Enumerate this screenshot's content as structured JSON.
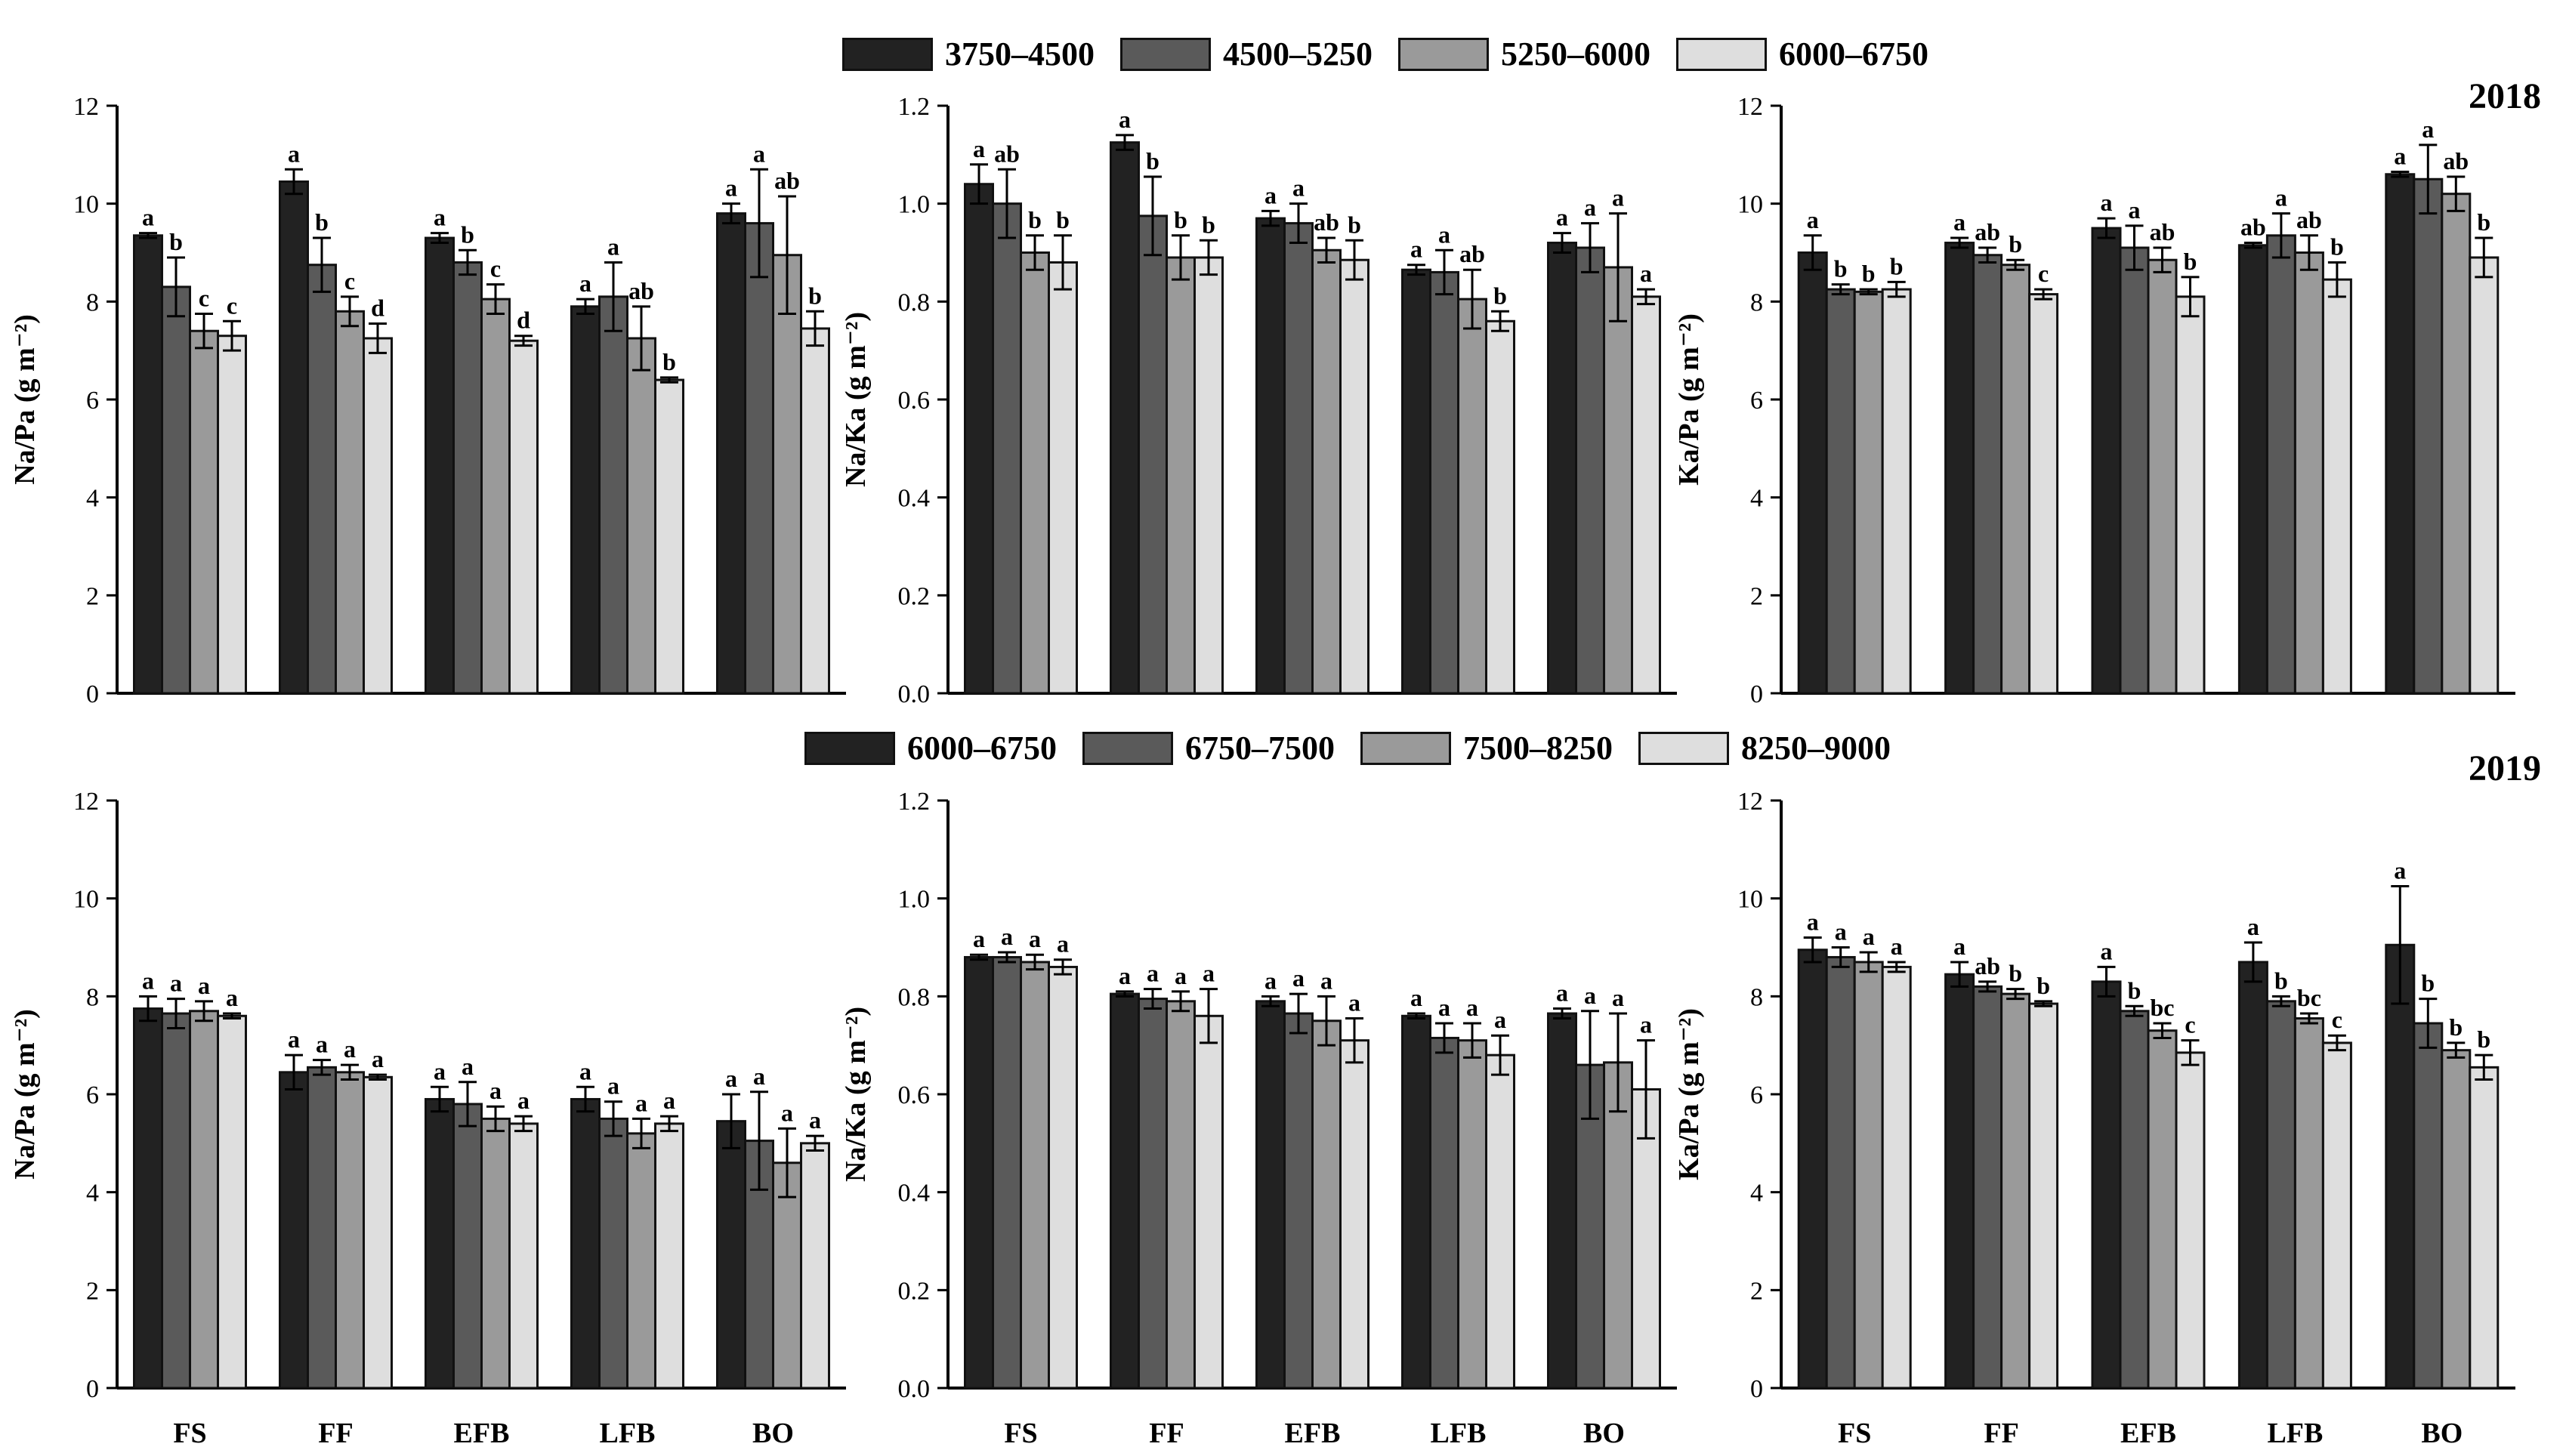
{
  "colors": [
    "#222222",
    "#5a5a5a",
    "#9a9a9a",
    "#dedede"
  ],
  "legend_2018": [
    "3750–4500",
    "4500–5250",
    "5250–6000",
    "6000–6750"
  ],
  "legend_2019": [
    "6000–6750",
    "6750–7500",
    "7500–8250",
    "8250–9000"
  ],
  "year_2018": "2018",
  "year_2019": "2019",
  "chart_data": [
    {
      "id": "na_pa_2018",
      "type": "bar",
      "year": "2018",
      "ylabel": "Na/Pa (g m⁻²)",
      "ylim": [
        0,
        12
      ],
      "yticks": [
        "0",
        "2",
        "4",
        "6",
        "8",
        "10",
        "12"
      ],
      "tick_values": [
        0,
        2,
        4,
        6,
        8,
        10,
        12
      ],
      "categories": [
        "FS",
        "FF",
        "EFB",
        "LFB",
        "BO"
      ],
      "show_xticklabels": false,
      "series": [
        {
          "name": "3750–4500",
          "values": [
            9.35,
            10.45,
            9.3,
            7.9,
            9.8
          ],
          "errors": [
            0.05,
            0.25,
            0.1,
            0.15,
            0.2
          ],
          "letters": [
            "a",
            "a",
            "a",
            "a",
            "a"
          ]
        },
        {
          "name": "4500–5250",
          "values": [
            8.3,
            8.75,
            8.8,
            8.1,
            9.6
          ],
          "errors": [
            0.6,
            0.55,
            0.25,
            0.7,
            1.1
          ],
          "letters": [
            "b",
            "b",
            "b",
            "a",
            "a"
          ]
        },
        {
          "name": "5250–6000",
          "values": [
            7.4,
            7.8,
            8.05,
            7.25,
            8.95
          ],
          "errors": [
            0.35,
            0.3,
            0.3,
            0.65,
            1.2
          ],
          "letters": [
            "c",
            "c",
            "c",
            "ab",
            "ab"
          ]
        },
        {
          "name": "6000–6750",
          "values": [
            7.3,
            7.25,
            7.2,
            6.4,
            7.45
          ],
          "errors": [
            0.3,
            0.3,
            0.1,
            0.05,
            0.35
          ],
          "letters": [
            "c",
            "d",
            "d",
            "b",
            "b"
          ]
        }
      ]
    },
    {
      "id": "na_ka_2018",
      "type": "bar",
      "year": "2018",
      "ylabel": "Na/Ka (g m⁻²)",
      "ylim": [
        0,
        1.2
      ],
      "yticks": [
        "0.0",
        "0.2",
        "0.4",
        "0.6",
        "0.8",
        "1.0",
        "1.2"
      ],
      "tick_values": [
        0,
        0.2,
        0.4,
        0.6,
        0.8,
        1.0,
        1.2
      ],
      "categories": [
        "FS",
        "FF",
        "EFB",
        "LFB",
        "BO"
      ],
      "show_xticklabels": false,
      "series": [
        {
          "name": "3750–4500",
          "values": [
            1.04,
            1.125,
            0.97,
            0.865,
            0.92
          ],
          "errors": [
            0.04,
            0.015,
            0.015,
            0.01,
            0.02
          ],
          "letters": [
            "a",
            "a",
            "a",
            "a",
            "a"
          ]
        },
        {
          "name": "4500–5250",
          "values": [
            1.0,
            0.975,
            0.96,
            0.86,
            0.91
          ],
          "errors": [
            0.07,
            0.08,
            0.04,
            0.045,
            0.05
          ],
          "letters": [
            "ab",
            "b",
            "a",
            "a",
            "a"
          ]
        },
        {
          "name": "5250–6000",
          "values": [
            0.9,
            0.89,
            0.905,
            0.805,
            0.87
          ],
          "errors": [
            0.035,
            0.045,
            0.025,
            0.06,
            0.11
          ],
          "letters": [
            "b",
            "b",
            "ab",
            "ab",
            "a"
          ]
        },
        {
          "name": "6000–6750",
          "values": [
            0.88,
            0.89,
            0.885,
            0.76,
            0.81
          ],
          "errors": [
            0.055,
            0.035,
            0.04,
            0.02,
            0.015
          ],
          "letters": [
            "b",
            "b",
            "b",
            "b",
            "a"
          ]
        }
      ]
    },
    {
      "id": "ka_pa_2018",
      "type": "bar",
      "year": "2018",
      "ylabel": "Ka/Pa (g m⁻²)",
      "ylim": [
        0,
        12
      ],
      "yticks": [
        "0",
        "2",
        "4",
        "6",
        "8",
        "10",
        "12"
      ],
      "tick_values": [
        0,
        2,
        4,
        6,
        8,
        10,
        12
      ],
      "categories": [
        "FS",
        "FF",
        "EFB",
        "LFB",
        "BO"
      ],
      "show_xticklabels": false,
      "series": [
        {
          "name": "3750–4500",
          "values": [
            9.0,
            9.2,
            9.5,
            9.15,
            10.6
          ],
          "errors": [
            0.35,
            0.1,
            0.2,
            0.05,
            0.05
          ],
          "letters": [
            "a",
            "a",
            "a",
            "ab",
            "a"
          ]
        },
        {
          "name": "4500–5250",
          "values": [
            8.25,
            8.95,
            9.1,
            9.35,
            10.5
          ],
          "errors": [
            0.1,
            0.15,
            0.45,
            0.45,
            0.7
          ],
          "letters": [
            "b",
            "ab",
            "a",
            "a",
            "a"
          ]
        },
        {
          "name": "5250–6000",
          "values": [
            8.2,
            8.75,
            8.85,
            9.0,
            10.2
          ],
          "errors": [
            0.05,
            0.1,
            0.25,
            0.35,
            0.35
          ],
          "letters": [
            "b",
            "b",
            "ab",
            "ab",
            "ab"
          ]
        },
        {
          "name": "6000–6750",
          "values": [
            8.25,
            8.15,
            8.1,
            8.45,
            8.9
          ],
          "errors": [
            0.15,
            0.1,
            0.4,
            0.35,
            0.4
          ],
          "letters": [
            "b",
            "c",
            "b",
            "b",
            "b"
          ]
        }
      ]
    },
    {
      "id": "na_pa_2019",
      "type": "bar",
      "year": "2019",
      "ylabel": "Na/Pa (g m⁻²)",
      "ylim": [
        0,
        12
      ],
      "yticks": [
        "0",
        "2",
        "4",
        "6",
        "8",
        "10",
        "12"
      ],
      "tick_values": [
        0,
        2,
        4,
        6,
        8,
        10,
        12
      ],
      "categories": [
        "FS",
        "FF",
        "EFB",
        "LFB",
        "BO"
      ],
      "show_xticklabels": true,
      "series": [
        {
          "name": "6000–6750",
          "values": [
            7.75,
            6.45,
            5.9,
            5.9,
            5.45
          ],
          "errors": [
            0.25,
            0.35,
            0.25,
            0.25,
            0.55
          ],
          "letters": [
            "a",
            "a",
            "a",
            "a",
            "a"
          ]
        },
        {
          "name": "6750–7500",
          "values": [
            7.65,
            6.55,
            5.8,
            5.5,
            5.05
          ],
          "errors": [
            0.3,
            0.15,
            0.45,
            0.35,
            1.0
          ],
          "letters": [
            "a",
            "a",
            "a",
            "a",
            "a"
          ]
        },
        {
          "name": "7500–8250",
          "values": [
            7.7,
            6.45,
            5.5,
            5.2,
            4.6
          ],
          "errors": [
            0.2,
            0.15,
            0.25,
            0.3,
            0.7
          ],
          "letters": [
            "a",
            "a",
            "a",
            "a",
            "a"
          ]
        },
        {
          "name": "8250–9000",
          "values": [
            7.6,
            6.35,
            5.4,
            5.4,
            5.0
          ],
          "errors": [
            0.05,
            0.05,
            0.15,
            0.15,
            0.15
          ],
          "letters": [
            "a",
            "a",
            "a",
            "a",
            "a"
          ]
        }
      ]
    },
    {
      "id": "na_ka_2019",
      "type": "bar",
      "year": "2019",
      "ylabel": "Na/Ka (g m⁻²)",
      "ylim": [
        0,
        1.2
      ],
      "yticks": [
        "0.0",
        "0.2",
        "0.4",
        "0.6",
        "0.8",
        "1.0",
        "1.2"
      ],
      "tick_values": [
        0,
        0.2,
        0.4,
        0.6,
        0.8,
        1.0,
        1.2
      ],
      "categories": [
        "FS",
        "FF",
        "EFB",
        "LFB",
        "BO"
      ],
      "show_xticklabels": true,
      "series": [
        {
          "name": "6000–6750",
          "values": [
            0.88,
            0.805,
            0.79,
            0.76,
            0.765
          ],
          "errors": [
            0.005,
            0.005,
            0.01,
            0.005,
            0.01
          ],
          "letters": [
            "a",
            "a",
            "a",
            "a",
            "a"
          ]
        },
        {
          "name": "6750–7500",
          "values": [
            0.88,
            0.795,
            0.765,
            0.715,
            0.66
          ],
          "errors": [
            0.01,
            0.02,
            0.04,
            0.03,
            0.11
          ],
          "letters": [
            "a",
            "a",
            "a",
            "a",
            "a"
          ]
        },
        {
          "name": "7500–8250",
          "values": [
            0.87,
            0.79,
            0.75,
            0.71,
            0.665
          ],
          "errors": [
            0.015,
            0.02,
            0.05,
            0.035,
            0.1
          ],
          "letters": [
            "a",
            "a",
            "a",
            "a",
            "a"
          ]
        },
        {
          "name": "8250–9000",
          "values": [
            0.86,
            0.76,
            0.71,
            0.68,
            0.61
          ],
          "errors": [
            0.015,
            0.055,
            0.045,
            0.04,
            0.1
          ],
          "letters": [
            "a",
            "a",
            "a",
            "a",
            "a"
          ]
        }
      ]
    },
    {
      "id": "ka_pa_2019",
      "type": "bar",
      "year": "2019",
      "ylabel": "Ka/Pa (g m⁻²)",
      "ylim": [
        0,
        12
      ],
      "yticks": [
        "0",
        "2",
        "4",
        "6",
        "8",
        "10",
        "12"
      ],
      "tick_values": [
        0,
        2,
        4,
        6,
        8,
        10,
        12
      ],
      "categories": [
        "FS",
        "FF",
        "EFB",
        "LFB",
        "BO"
      ],
      "show_xticklabels": true,
      "series": [
        {
          "name": "6000–6750",
          "values": [
            8.95,
            8.45,
            8.3,
            8.7,
            9.05
          ],
          "errors": [
            0.25,
            0.25,
            0.3,
            0.4,
            1.2
          ],
          "letters": [
            "a",
            "a",
            "a",
            "a",
            "a"
          ]
        },
        {
          "name": "6750–7500",
          "values": [
            8.8,
            8.2,
            7.7,
            7.9,
            7.45
          ],
          "errors": [
            0.2,
            0.1,
            0.1,
            0.1,
            0.5
          ],
          "letters": [
            "a",
            "ab",
            "b",
            "b",
            "b"
          ]
        },
        {
          "name": "7500–8250",
          "values": [
            8.7,
            8.05,
            7.3,
            7.55,
            6.9
          ],
          "errors": [
            0.2,
            0.1,
            0.15,
            0.1,
            0.15
          ],
          "letters": [
            "a",
            "b",
            "bc",
            "bc",
            "b"
          ]
        },
        {
          "name": "8250–9000",
          "values": [
            8.6,
            7.85,
            6.85,
            7.05,
            6.55
          ],
          "errors": [
            0.1,
            0.05,
            0.25,
            0.15,
            0.25
          ],
          "letters": [
            "a",
            "b",
            "c",
            "c",
            "b"
          ]
        }
      ]
    }
  ]
}
